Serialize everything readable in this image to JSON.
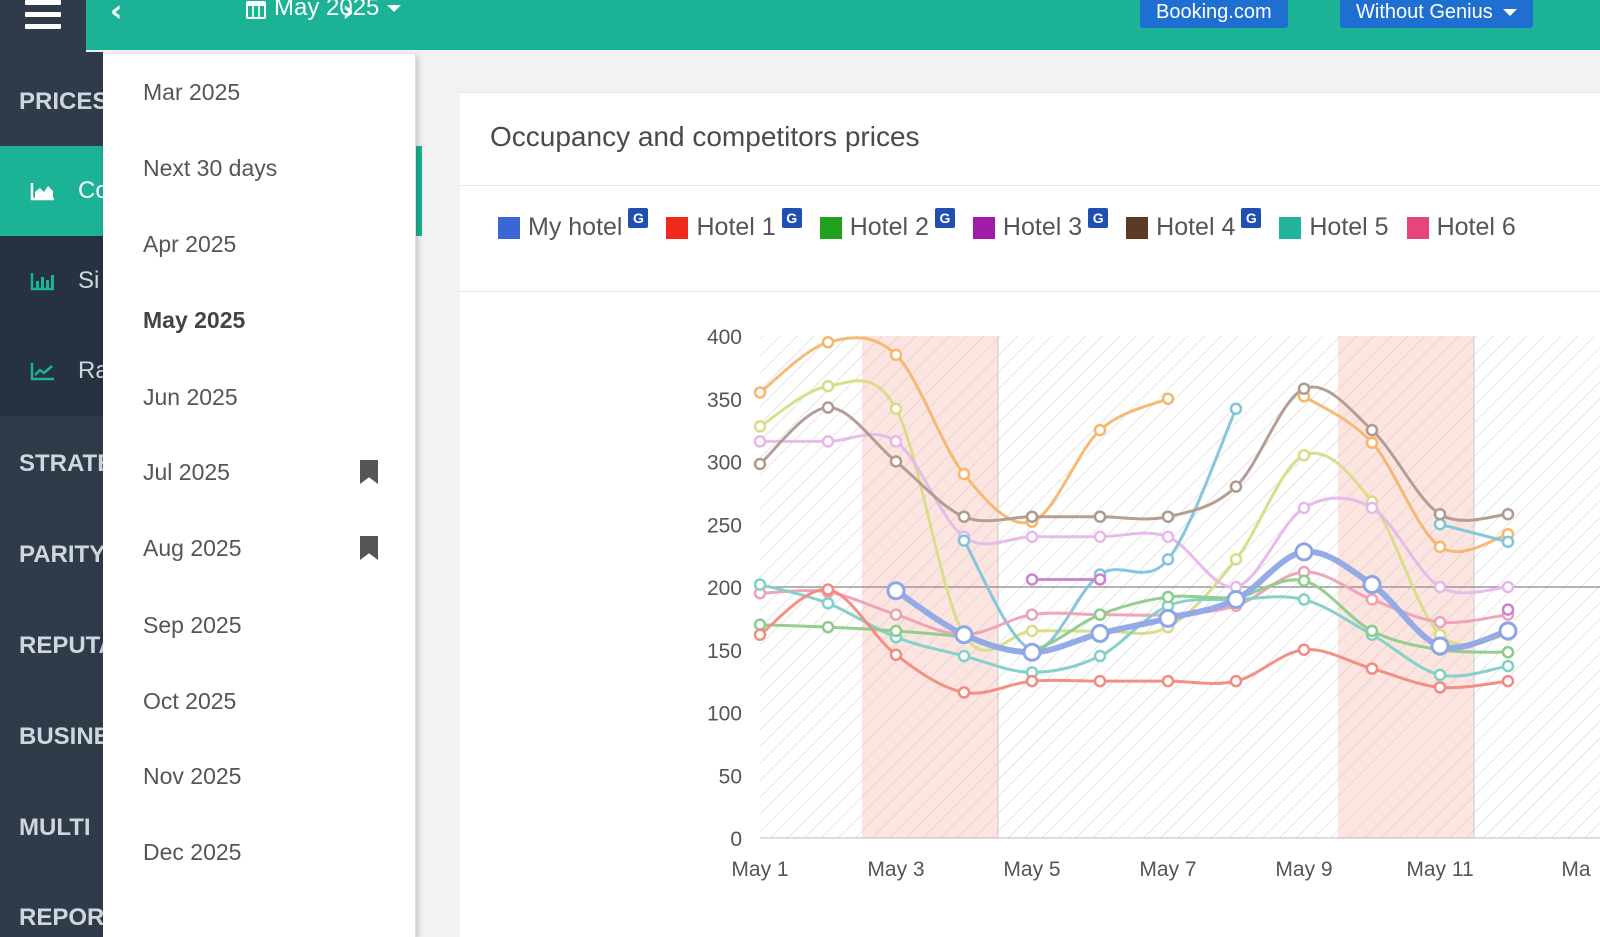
{
  "header": {
    "period_label": "May 2025",
    "booking_button": "Booking.com",
    "genius_button": "Without Genius"
  },
  "sidebar": {
    "sections": [
      {
        "label": "PRICES"
      },
      {
        "label": "STRATE"
      },
      {
        "label": "PARITY"
      },
      {
        "label": "REPUTA"
      },
      {
        "label": "BUSINE"
      },
      {
        "label": "MULTI"
      },
      {
        "label": "REPOR"
      }
    ],
    "items": [
      {
        "label": "Co",
        "icon": "area-chart-icon",
        "active": true
      },
      {
        "label": "Si",
        "icon": "bar-chart-icon",
        "active": false
      },
      {
        "label": "Ra",
        "icon": "line-chart-icon",
        "active": false
      }
    ]
  },
  "period_dropdown": {
    "options": [
      {
        "label": "Mar 2025",
        "selected": false,
        "bookmarked": false
      },
      {
        "label": "Next 30 days",
        "selected": false,
        "bookmarked": false
      },
      {
        "label": "Apr 2025",
        "selected": false,
        "bookmarked": false
      },
      {
        "label": "May 2025",
        "selected": true,
        "bookmarked": false
      },
      {
        "label": "Jun 2025",
        "selected": false,
        "bookmarked": false
      },
      {
        "label": "Jul 2025",
        "selected": false,
        "bookmarked": true
      },
      {
        "label": "Aug 2025",
        "selected": false,
        "bookmarked": true
      },
      {
        "label": "Sep 2025",
        "selected": false,
        "bookmarked": false
      },
      {
        "label": "Oct 2025",
        "selected": false,
        "bookmarked": false
      },
      {
        "label": "Nov 2025",
        "selected": false,
        "bookmarked": false
      },
      {
        "label": "Dec 2025",
        "selected": false,
        "bookmarked": false
      }
    ]
  },
  "panel": {
    "title": "Occupancy and competitors prices",
    "genius_badge": "G"
  },
  "colors": {
    "accent": "#1bb295",
    "sidebar": "#2f3b49",
    "button": "#1f6fd0"
  },
  "chart_data": {
    "type": "line",
    "title": "",
    "xlabel": "",
    "ylabel": "",
    "ylim": [
      0,
      400
    ],
    "yticks": [
      "0",
      "50",
      "100",
      "150",
      "200",
      "250",
      "300",
      "350",
      "400"
    ],
    "x": [
      "May 1",
      "May 2",
      "May 3",
      "May 4",
      "May 5",
      "May 6",
      "May 7",
      "May 8",
      "May 9",
      "May 10",
      "May 11",
      "May 12"
    ],
    "xtick_labels": [
      "May 1",
      "May 3",
      "May 5",
      "May 7",
      "May 9",
      "May 11",
      "Ma"
    ],
    "reference_line": 200,
    "highlighted_ranges": [
      [
        "May 2.5",
        "May 4.5"
      ],
      [
        "May 9.5",
        "May 11.5"
      ]
    ],
    "series": [
      {
        "name": "My hotel",
        "legend_color": "#3a66d6",
        "color": "#8fa6e6",
        "genius": true,
        "values": [
          null,
          null,
          197,
          162,
          148,
          163,
          175,
          190,
          228,
          202,
          153,
          165
        ]
      },
      {
        "name": "Hotel 1",
        "legend_color": "#f02a1a",
        "color": "#f28a80",
        "genius": true,
        "values": [
          162,
          198,
          146,
          116,
          125,
          125,
          125,
          125,
          150,
          135,
          120,
          125
        ]
      },
      {
        "name": "Hotel 2",
        "legend_color": "#1fa01f",
        "color": "#8ccc8a",
        "genius": true,
        "values": [
          170,
          168,
          165,
          160,
          150,
          178,
          192,
          192,
          205,
          165,
          150,
          148
        ]
      },
      {
        "name": "Hotel 3",
        "legend_color": "#a21aa8",
        "color": "#c982cd",
        "genius": true,
        "values": [
          null,
          null,
          null,
          null,
          206,
          206,
          null,
          null,
          null,
          null,
          null,
          182
        ]
      },
      {
        "name": "Hotel 4",
        "legend_color": "#5c3a22",
        "color": "#b09a8e",
        "genius": true,
        "values": [
          298,
          343,
          300,
          256,
          256,
          256,
          256,
          280,
          358,
          325,
          258,
          258
        ]
      },
      {
        "name": "Hotel 5",
        "legend_color": "#22b39c",
        "color": "#7fd0c6",
        "genius": false,
        "values": [
          202,
          187,
          160,
          145,
          132,
          145,
          185,
          190,
          190,
          162,
          130,
          137
        ]
      },
      {
        "name": "Hotel 6",
        "legend_color": "#e5457c",
        "color": "#eea1b6",
        "genius": false,
        "values": [
          195,
          196,
          178,
          162,
          178,
          178,
          178,
          185,
          212,
          190,
          172,
          178
        ]
      },
      {
        "name": "",
        "color": "#f5b66e",
        "genius": false,
        "values": [
          355,
          395,
          385,
          290,
          252,
          325,
          350,
          null,
          352,
          315,
          232,
          242
        ]
      },
      {
        "name": "",
        "color": "#d6dd85",
        "genius": false,
        "values": [
          328,
          360,
          342,
          162,
          165,
          165,
          168,
          222,
          305,
          268,
          162,
          162
        ]
      },
      {
        "name": "",
        "color": "#e6b8ea",
        "genius": false,
        "values": [
          316,
          316,
          316,
          240,
          240,
          240,
          240,
          200,
          263,
          263,
          200,
          200
        ]
      },
      {
        "name": "",
        "color": "#7fc4d9",
        "genius": false,
        "values": [
          null,
          null,
          null,
          237,
          150,
          210,
          222,
          342,
          null,
          null,
          250,
          236
        ]
      }
    ]
  }
}
